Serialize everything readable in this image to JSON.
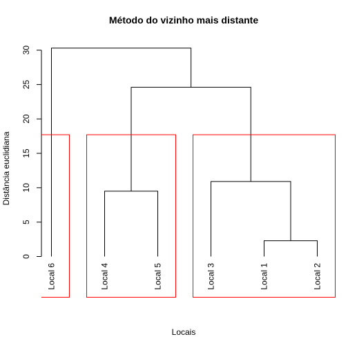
{
  "chart_data": {
    "type": "dendrogram",
    "title": "Método do vizinho mais distante",
    "xlabel": "Locais",
    "ylabel": "Distância euclidiana",
    "ylim": [
      0,
      30
    ],
    "yticks": [
      0,
      5,
      10,
      15,
      20,
      25,
      30
    ],
    "leaves": [
      "Local 6",
      "Local 4",
      "Local 5",
      "Local 3",
      "Local 1",
      "Local 2"
    ],
    "merges": [
      {
        "left": "Local 1",
        "right": "Local 2",
        "height": 2.3
      },
      {
        "left": "Local 3",
        "right": "Local 1+Local 2",
        "height": 10.9
      },
      {
        "left": "Local 4",
        "right": "Local 5",
        "height": 9.5
      },
      {
        "left": "Local 4+Local 5",
        "right": "Local 3+Local 1+Local 2",
        "height": 24.6
      },
      {
        "left": "Local 6",
        "right": "Local 4+Local 5+Local 3+Local 1+Local 2",
        "height": 30.3
      }
    ],
    "clusters": [
      {
        "members": [
          "Local 6"
        ],
        "color": "#ff0000"
      },
      {
        "members": [
          "Local 4",
          "Local 5"
        ],
        "color": "#ff0000"
      },
      {
        "members": [
          "Local 3",
          "Local 1",
          "Local 2"
        ],
        "color": "#ff0000"
      }
    ],
    "cut_height": 17.7
  }
}
